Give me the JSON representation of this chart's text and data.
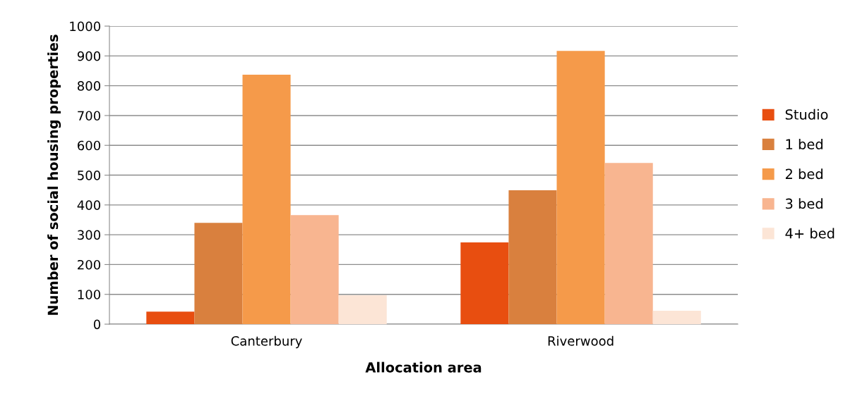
{
  "chart_data": {
    "type": "bar",
    "xlabel": "Allocation area",
    "ylabel": "Number of social housing properties",
    "categories": [
      "Canterbury",
      "Riverwood"
    ],
    "series": [
      {
        "name": "Studio",
        "color": "#e84e10",
        "values": [
          42,
          274
        ]
      },
      {
        "name": "1 bed",
        "color": "#d9803e",
        "values": [
          340,
          449
        ]
      },
      {
        "name": "2 bed",
        "color": "#f59a4a",
        "values": [
          837,
          917
        ]
      },
      {
        "name": "3 bed",
        "color": "#f8b590",
        "values": [
          366,
          541
        ]
      },
      {
        "name": "4+ bed",
        "color": "#fce5d6",
        "values": [
          97,
          45
        ]
      }
    ],
    "ylim": [
      0,
      1000
    ],
    "yticks": [
      0,
      100,
      200,
      300,
      400,
      500,
      600,
      700,
      800,
      900,
      1000
    ],
    "grid": "y",
    "legend": "right"
  }
}
